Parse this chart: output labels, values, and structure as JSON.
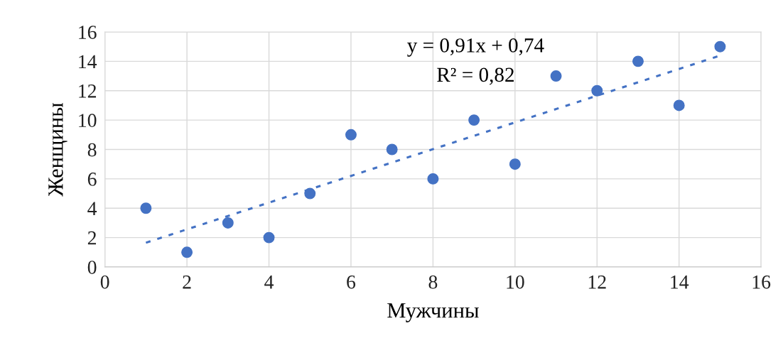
{
  "chart_data": {
    "type": "scatter",
    "xlabel": "Мужчины",
    "ylabel": "Женщины",
    "annotations": [
      "y = 0,91x + 0,74",
      "R² = 0,82"
    ],
    "series": [
      {
        "color": "#4472c4",
        "x": [
          1,
          2,
          3,
          4,
          5,
          6,
          7,
          8,
          9,
          10,
          11,
          12,
          13,
          14,
          15
        ],
        "values": [
          4,
          1,
          3,
          2,
          5,
          9,
          8,
          6,
          10,
          7,
          13,
          12,
          14,
          11,
          15
        ],
        "marker": "circle"
      },
      {
        "type": "line",
        "color": "#4472c4",
        "x": [
          1,
          15
        ],
        "values": [
          1.65,
          14.39
        ],
        "line_style": "dotted",
        "marker": "none"
      }
    ],
    "xlim": [
      0,
      16
    ],
    "ylim": [
      0,
      16
    ],
    "xticks": [
      0,
      2,
      4,
      6,
      8,
      10,
      12,
      14,
      16
    ],
    "yticks": [
      0,
      2,
      4,
      6,
      8,
      10,
      12,
      14,
      16
    ],
    "grid": true
  }
}
